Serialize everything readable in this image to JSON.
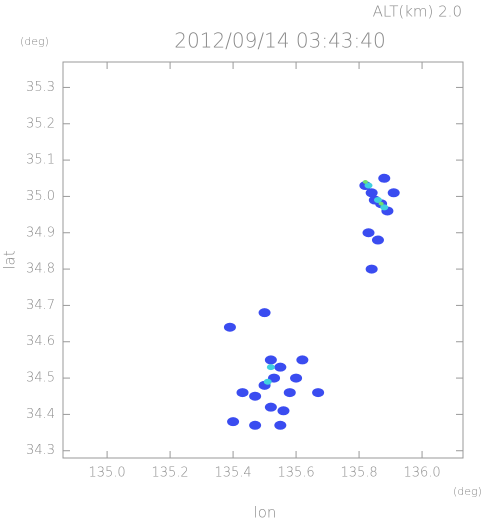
{
  "chart_data": {
    "type": "scatter",
    "title": "2012/09/14 03:43:40",
    "subtitle": "ALT(km) 2.0",
    "x_label": "lon",
    "y_label": "lat",
    "x_unit": "(deg)",
    "y_unit": "(deg)",
    "xlim": [
      134.86,
      136.13
    ],
    "ylim": [
      34.28,
      35.37
    ],
    "xticks": [
      {
        "value": 135.0,
        "label": "135.0"
      },
      135.2,
      135.4,
      135.6,
      135.8,
      {
        "value": 136.0,
        "label": "136.0"
      }
    ],
    "yticks": [
      34.3,
      34.4,
      34.5,
      34.6,
      34.7,
      34.8,
      34.9,
      {
        "value": 35.0,
        "label": "35.0"
      },
      35.1,
      35.2,
      35.3
    ],
    "grid": false,
    "series": [
      {
        "color": "#3a4cf0",
        "x": [
          135.82,
          135.84,
          135.87,
          135.89,
          135.91,
          135.88,
          135.85,
          135.52,
          135.53,
          135.5,
          135.55,
          135.47,
          135.58,
          135.52,
          135.4,
          135.47,
          135.55,
          135.62,
          135.6,
          135.67,
          135.56,
          135.43,
          135.83,
          135.86,
          135.84,
          135.39,
          135.5
        ],
        "y": [
          35.03,
          35.01,
          34.98,
          34.96,
          35.01,
          35.05,
          34.99,
          34.55,
          34.5,
          34.48,
          34.53,
          34.45,
          34.46,
          34.42,
          34.38,
          34.37,
          34.37,
          34.55,
          34.5,
          34.46,
          34.41,
          34.46,
          34.9,
          34.88,
          34.8,
          34.64,
          34.68
        ]
      },
      {
        "color": "#40d0e0",
        "x": [
          135.86,
          135.88,
          135.52,
          135.51,
          135.83
        ],
        "y": [
          34.99,
          34.97,
          34.53,
          34.49,
          35.03
        ]
      },
      {
        "color": "#70e070",
        "x": [
          135.87,
          135.82
        ],
        "y": [
          34.98,
          35.04
        ]
      }
    ]
  }
}
